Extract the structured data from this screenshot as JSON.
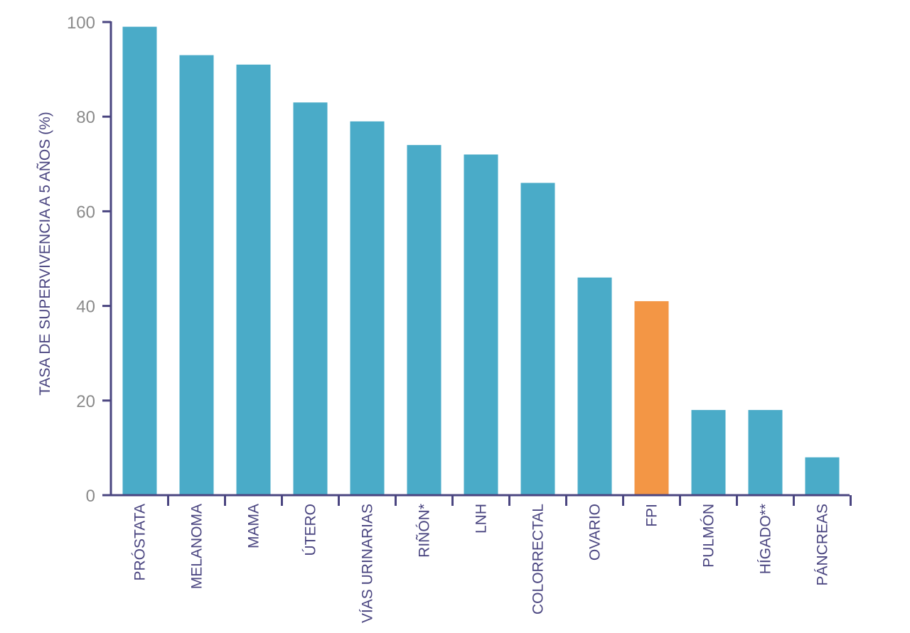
{
  "chart_data": {
    "type": "bar",
    "title": "",
    "xlabel": "",
    "ylabel": "TASA DE SUPERVIVENCIA A 5 AÑOS (%)",
    "ylim": [
      0,
      100
    ],
    "yticks": [
      0,
      20,
      40,
      60,
      80,
      100
    ],
    "categories": [
      "PRÓSTATA",
      "MELANOMA",
      "MAMA",
      "ÚTERO",
      "VÍAS URINARIAS",
      "RIÑÓN*",
      "LNH",
      "COLORRECTAL",
      "OVARIO",
      "FPI",
      "PULMÓN",
      "HÍGADO**",
      "PÁNCREAS"
    ],
    "values": [
      99,
      93,
      91,
      83,
      79,
      74,
      72,
      66,
      46,
      41,
      18,
      18,
      8
    ],
    "highlight_category": "FPI",
    "grid": false,
    "legend": "none",
    "colors": {
      "bar": "#4aabc8",
      "highlight": "#f39645",
      "axis": "#4a4580",
      "tick_text": "#8a8a8a",
      "category_text": "#4a4580"
    }
  }
}
